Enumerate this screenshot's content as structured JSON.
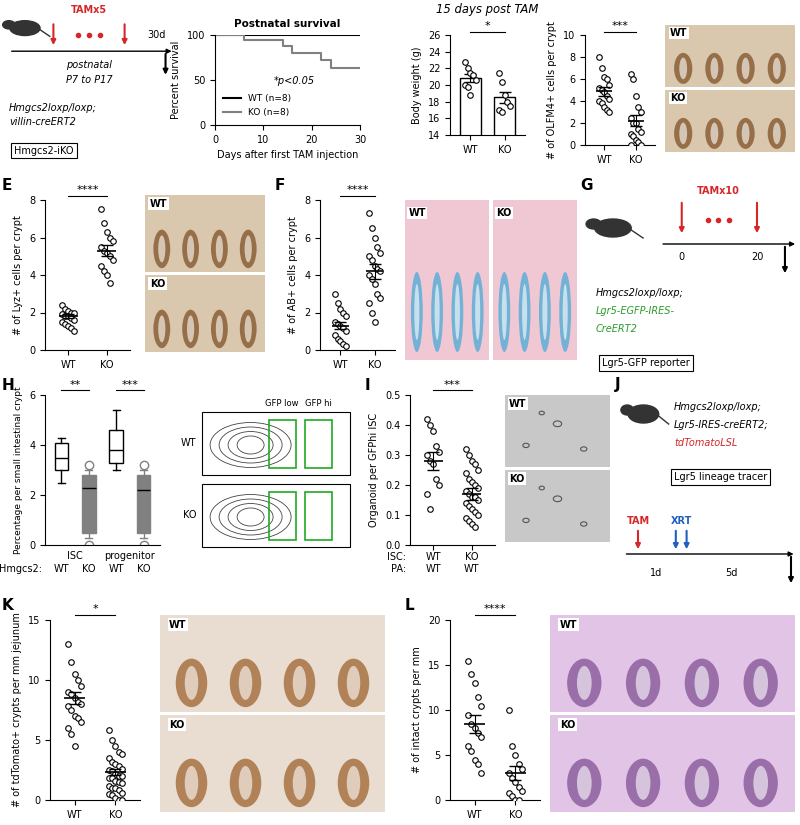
{
  "chart_data": [
    {
      "type": "line",
      "title": "Postnatal survival",
      "xlabel": "Days after first TAM injection",
      "ylabel": "Percent survival",
      "x": [
        0,
        6,
        14,
        16,
        22,
        24,
        30
      ],
      "series": [
        {
          "name": "WT (n=8)",
          "color": "#000000",
          "values": [
            100,
            100,
            100,
            100,
            100,
            100,
            100
          ]
        },
        {
          "name": "KO (n=8)",
          "color": "#808080",
          "values": [
            100,
            95,
            88,
            80,
            72,
            63,
            63
          ]
        }
      ],
      "xlim": [
        0,
        30
      ],
      "xticks": [
        0,
        10,
        20,
        30
      ],
      "ylim": [
        0,
        100
      ],
      "yticks": [
        0,
        50,
        100
      ],
      "legend": "lower left",
      "line_style": "steps",
      "annotations": [
        "*p<0.05"
      ]
    },
    {
      "type": "bar",
      "title": "15 days post TAM",
      "ylabel": "Body weight (g)",
      "categories": [
        "WT",
        "KO"
      ],
      "values": [
        20.8,
        18.5
      ],
      "errors": [
        0.5,
        0.7
      ],
      "color": "#000000",
      "points": [
        [
          22.8,
          22.0,
          21.5,
          21.2,
          20.6,
          20.0,
          19.8,
          18.8
        ],
        [
          21.5,
          20.3,
          18.8,
          18.0,
          17.5,
          17.0,
          16.8
        ]
      ],
      "ylim": [
        14,
        26
      ],
      "yticks": [
        14,
        16,
        18,
        20,
        22,
        24,
        26
      ],
      "annotations": [
        "*"
      ]
    },
    {
      "type": "scatter",
      "ylabel": "# of OLFM4+ cells per crypt",
      "categories": [
        "WT",
        "KO"
      ],
      "color": "#000000",
      "values": [
        [
          8.0,
          7.0,
          6.2,
          6.0,
          5.5,
          5.2,
          5.0,
          4.8,
          4.5,
          4.2,
          4.0,
          3.8,
          3.5,
          3.2,
          3.0
        ],
        [
          6.5,
          6.0,
          4.5,
          3.5,
          3.0,
          2.5,
          2.0,
          2.0,
          1.5,
          1.2,
          1.0,
          0.8,
          0.5,
          0.3,
          0.0,
          0.0
        ]
      ],
      "means": [
        4.9,
        2.2
      ],
      "errors": [
        0.4,
        0.5
      ],
      "ylim": [
        0,
        10
      ],
      "yticks": [
        0,
        2,
        4,
        6,
        8,
        10
      ],
      "annotations": [
        "***"
      ]
    },
    {
      "panel": "E",
      "type": "scatter",
      "ylabel": "# of Lyz+ cells per crypt",
      "categories": [
        "WT",
        "KO"
      ],
      "color": "#000000",
      "values": [
        [
          2.4,
          2.2,
          2.1,
          2.0,
          2.0,
          1.9,
          1.8,
          1.8,
          1.7,
          1.6,
          1.5,
          1.4,
          1.3,
          1.2,
          1.0
        ],
        [
          7.5,
          6.8,
          6.3,
          6.0,
          5.8,
          5.5,
          5.3,
          5.2,
          5.0,
          4.8,
          4.5,
          4.2,
          4.0,
          3.6
        ]
      ],
      "means": [
        1.8,
        5.3
      ],
      "errors": [
        0.1,
        0.3
      ],
      "ylim": [
        0,
        8
      ],
      "yticks": [
        0,
        2,
        4,
        6,
        8
      ],
      "annotations": [
        "****"
      ]
    },
    {
      "panel": "F",
      "type": "scatter",
      "ylabel": "# of AB+ cells per crypt",
      "categories": [
        "WT",
        "KO"
      ],
      "color": "#000000",
      "values": [
        [
          3.0,
          2.5,
          2.2,
          2.0,
          1.8,
          1.5,
          1.4,
          1.3,
          1.2,
          1.0,
          0.8,
          0.6,
          0.5,
          0.3,
          0.2
        ],
        [
          7.3,
          6.5,
          6.0,
          5.5,
          5.2,
          5.0,
          4.8,
          4.5,
          4.3,
          4.2,
          4.0,
          3.8,
          3.5,
          3.0,
          2.8,
          2.5,
          2.0,
          1.5
        ]
      ],
      "means": [
        1.3,
        4.2
      ],
      "errors": [
        0.2,
        0.4
      ],
      "ylim": [
        0,
        8
      ],
      "yticks": [
        0,
        2,
        4,
        6,
        8
      ],
      "annotations": [
        "****"
      ]
    },
    {
      "panel": "H",
      "type": "box",
      "ylabel": "Percentage per small intestinal crypt",
      "row_labels": [
        "Hmgcs2:"
      ],
      "categories": [
        "WT",
        "KO",
        "WT",
        "KO"
      ],
      "groups": [
        "ISC",
        "progenitor"
      ],
      "boxes": [
        [
          2.5,
          3.0,
          3.5,
          4.1,
          4.3
        ],
        [
          0.3,
          0.5,
          2.3,
          2.8,
          3.0
        ],
        [
          3.0,
          3.3,
          3.8,
          4.6,
          5.4
        ],
        [
          0.3,
          0.5,
          2.2,
          2.8,
          3.0
        ]
      ],
      "outliers": [
        [],
        [
          0.0,
          3.2
        ],
        [],
        [
          0.0,
          3.2
        ]
      ],
      "colors": [
        "#000000",
        "#808080",
        "#000000",
        "#808080"
      ],
      "ylim": [
        0,
        6
      ],
      "yticks": [
        0,
        2,
        4,
        6
      ],
      "annotations": [
        "**",
        "***"
      ]
    },
    {
      "panel": "I",
      "type": "scatter",
      "ylabel": "Organoid per GFPhi ISC",
      "row_labels": [
        "ISC:",
        "PA:"
      ],
      "categories": [
        [
          "WT",
          "WT"
        ],
        [
          "KO",
          "WT"
        ]
      ],
      "color": "#000000",
      "values": [
        [
          0.42,
          0.4,
          0.38,
          0.33,
          0.31,
          0.3,
          0.28,
          0.27,
          0.22,
          0.2,
          0.17,
          0.12
        ],
        [
          0.32,
          0.3,
          0.28,
          0.27,
          0.25,
          0.24,
          0.22,
          0.21,
          0.2,
          0.19,
          0.18,
          0.17,
          0.16,
          0.16,
          0.15,
          0.14,
          0.13,
          0.12,
          0.11,
          0.1,
          0.09,
          0.08,
          0.07,
          0.06
        ]
      ],
      "means": [
        0.28,
        0.17
      ],
      "errors": [
        0.03,
        0.02
      ],
      "ylim": [
        0.0,
        0.5
      ],
      "yticks": [
        0.0,
        0.1,
        0.2,
        0.3,
        0.4,
        0.5
      ],
      "annotations": [
        "***"
      ]
    },
    {
      "panel": "K",
      "type": "scatter",
      "ylabel": "# of tdTomato+ crypts per mm jejunum",
      "categories": [
        "WT",
        "KO"
      ],
      "color": "#000000",
      "values": [
        [
          13.0,
          11.5,
          10.5,
          10.0,
          9.5,
          9.0,
          8.8,
          8.5,
          8.2,
          8.0,
          7.8,
          7.5,
          7.0,
          6.8,
          6.5,
          6.0,
          5.5,
          4.5
        ],
        [
          5.8,
          5.0,
          4.5,
          4.0,
          3.8,
          3.5,
          3.2,
          3.0,
          2.8,
          2.6,
          2.5,
          2.4,
          2.2,
          2.0,
          2.0,
          1.8,
          1.8,
          1.6,
          1.5,
          1.4,
          1.2,
          1.0,
          1.0,
          0.8,
          0.6,
          0.5,
          0.4,
          0.2,
          0.0,
          0.0
        ]
      ],
      "means": [
        8.5,
        2.3
      ],
      "errors": [
        0.5,
        0.25
      ],
      "ylim": [
        0,
        15
      ],
      "yticks": [
        0,
        5,
        10,
        15
      ],
      "annotations": [
        "*"
      ]
    },
    {
      "panel": "L",
      "type": "scatter",
      "ylabel": "# of intact crypts per mm",
      "categories": [
        "WT",
        "KO"
      ],
      "color": "#000000",
      "values": [
        [
          15.5,
          14.0,
          13.0,
          11.5,
          10.5,
          9.5,
          8.5,
          8.0,
          7.5,
          7.0,
          6.0,
          5.5,
          4.5,
          4.0,
          3.0
        ],
        [
          10.0,
          6.0,
          5.0,
          4.0,
          3.5,
          3.0,
          2.5,
          2.0,
          1.5,
          1.0,
          0.8,
          0.5,
          0.0,
          0.0
        ]
      ],
      "means": [
        8.5,
        3.0
      ],
      "errors": [
        1.0,
        0.8
      ],
      "ylim": [
        0,
        20
      ],
      "yticks": [
        0,
        5,
        10,
        15,
        20
      ],
      "annotations": [
        "****"
      ]
    }
  ],
  "schematics": [
    {
      "treatment": "TAMx5",
      "timeline": [
        "postnatal",
        "P7 to P17"
      ],
      "end": "30d",
      "genotype": [
        "Hmgcs2loxp/loxp;",
        "villin-creERT2"
      ],
      "model": "Hmgcs2-iKO"
    },
    {
      "panel": "G",
      "treatment": "TAMx10",
      "timeline": [
        "0",
        "20"
      ],
      "genotype": [
        "Hmgcs2loxp/loxp;",
        "Lgr5-EGFP-IRES-",
        "CreERT2"
      ],
      "model": "Lgr5-GFP reporter"
    },
    {
      "panel": "J",
      "treatment": "TAM",
      "irradiation": "XRT",
      "timeline": [
        "1d",
        "5d"
      ],
      "genotype": [
        "Hmgcs2loxp/loxp;",
        "Lgr5-IRES-creERT2;",
        "tdTomatoLSL"
      ],
      "model": "Lgr5 lineage tracer"
    }
  ],
  "images": [
    {
      "labels": [
        "WT",
        "KO"
      ]
    },
    {
      "labels": [
        "WT",
        "KO"
      ]
    },
    {
      "labels": [
        "WT",
        "KO"
      ]
    },
    {
      "labels": [
        "WT",
        "KO"
      ],
      "gates": [
        "GFP low",
        "GFP hi"
      ]
    },
    {
      "labels": [
        "WT",
        "KO"
      ]
    },
    {
      "labels": [
        "WT",
        "KO"
      ]
    },
    {
      "labels": [
        "WT",
        "KO"
      ]
    }
  ]
}
